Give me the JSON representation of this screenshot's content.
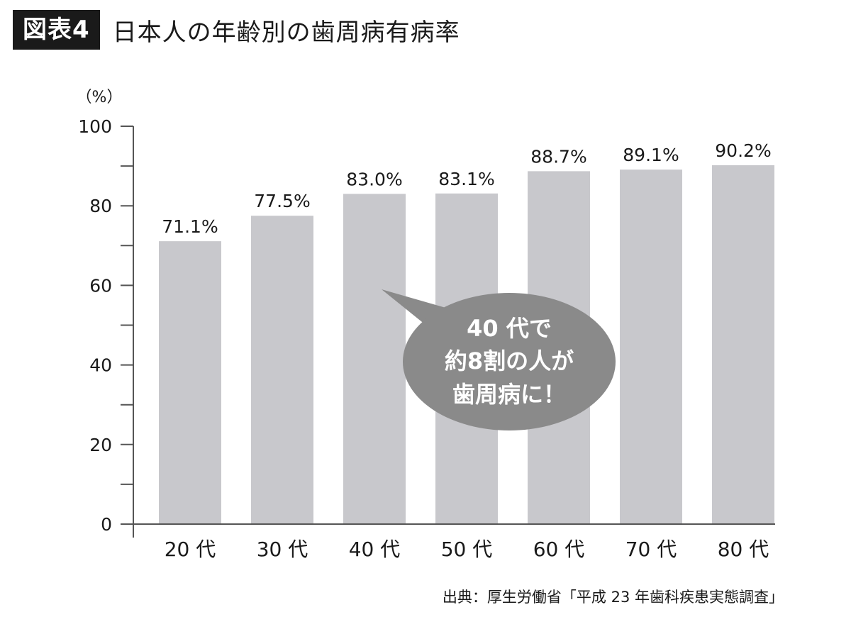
{
  "figure": {
    "badge": "図表4",
    "title": "日本人の年齢別の歯周病有病率"
  },
  "chart_data": {
    "type": "bar",
    "ylabel": "（%）",
    "ylim": [
      0,
      100
    ],
    "yticks": [
      0,
      20,
      40,
      60,
      80,
      100
    ],
    "ytick_labels": [
      "0",
      "20",
      "40",
      "60",
      "80",
      "100"
    ],
    "categories": [
      "20 代",
      "30 代",
      "40 代",
      "50 代",
      "60 代",
      "70 代",
      "80 代"
    ],
    "values": [
      71.1,
      77.5,
      83.0,
      83.1,
      88.7,
      89.1,
      90.2
    ],
    "value_labels": [
      "71.1%",
      "77.5%",
      "83.0%",
      "83.1%",
      "88.7%",
      "89.1%",
      "90.2%"
    ],
    "bar_color": "#c8c8cc",
    "annotation": {
      "lines": [
        "40 代で",
        "約8割の人が",
        "歯周病に！"
      ],
      "bubble_color": "#8a8a8a",
      "text_color": "#ffffff"
    },
    "grid": false
  },
  "source": "出典：厚生労働省「平成 23 年歯科疾患実態調査」"
}
